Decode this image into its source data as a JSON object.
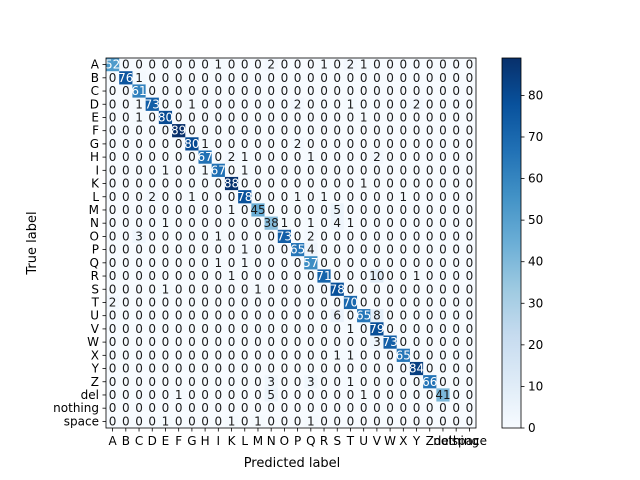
{
  "chart_data": {
    "type": "heatmap",
    "xlabel": "Predicted label",
    "ylabel": "True label",
    "labels": [
      "A",
      "B",
      "C",
      "D",
      "E",
      "F",
      "G",
      "H",
      "I",
      "K",
      "L",
      "M",
      "N",
      "O",
      "P",
      "Q",
      "R",
      "S",
      "T",
      "U",
      "V",
      "W",
      "X",
      "Y",
      "Z",
      "del",
      "nothing",
      "space"
    ],
    "matrix": [
      [
        52,
        0,
        0,
        0,
        0,
        0,
        0,
        0,
        1,
        0,
        0,
        0,
        2,
        0,
        0,
        0,
        1,
        0,
        2,
        1,
        0,
        0,
        0,
        0,
        0,
        0,
        0,
        0
      ],
      [
        0,
        76,
        1,
        0,
        0,
        0,
        0,
        0,
        0,
        0,
        0,
        0,
        0,
        0,
        0,
        0,
        0,
        0,
        0,
        0,
        0,
        0,
        0,
        0,
        0,
        0,
        0,
        0
      ],
      [
        0,
        0,
        61,
        0,
        0,
        0,
        0,
        0,
        0,
        0,
        0,
        0,
        0,
        0,
        0,
        0,
        0,
        0,
        0,
        0,
        0,
        0,
        0,
        0,
        0,
        0,
        0,
        0
      ],
      [
        0,
        0,
        1,
        73,
        0,
        0,
        1,
        0,
        0,
        0,
        0,
        0,
        0,
        0,
        2,
        0,
        0,
        0,
        1,
        0,
        0,
        0,
        0,
        2,
        0,
        0,
        0,
        0
      ],
      [
        0,
        0,
        1,
        0,
        80,
        0,
        0,
        0,
        0,
        0,
        0,
        0,
        0,
        0,
        0,
        0,
        0,
        0,
        0,
        1,
        0,
        0,
        0,
        0,
        0,
        0,
        0,
        0
      ],
      [
        0,
        0,
        0,
        0,
        0,
        89,
        0,
        0,
        0,
        0,
        0,
        0,
        0,
        0,
        0,
        0,
        0,
        0,
        0,
        0,
        0,
        0,
        0,
        0,
        0,
        0,
        0,
        0
      ],
      [
        0,
        0,
        0,
        0,
        0,
        0,
        80,
        1,
        0,
        0,
        0,
        0,
        0,
        0,
        2,
        0,
        0,
        0,
        0,
        0,
        0,
        0,
        0,
        0,
        0,
        0,
        0,
        0
      ],
      [
        0,
        0,
        0,
        0,
        0,
        0,
        0,
        67,
        0,
        2,
        1,
        0,
        0,
        0,
        0,
        1,
        0,
        0,
        0,
        0,
        2,
        0,
        0,
        0,
        0,
        0,
        0,
        0
      ],
      [
        0,
        0,
        0,
        0,
        1,
        0,
        0,
        1,
        67,
        0,
        1,
        0,
        0,
        0,
        0,
        0,
        0,
        0,
        0,
        0,
        0,
        0,
        0,
        0,
        0,
        0,
        0,
        0
      ],
      [
        0,
        0,
        0,
        0,
        0,
        0,
        0,
        0,
        0,
        88,
        0,
        0,
        0,
        0,
        0,
        0,
        0,
        0,
        0,
        1,
        0,
        0,
        0,
        0,
        0,
        0,
        0,
        0
      ],
      [
        0,
        0,
        0,
        2,
        0,
        0,
        1,
        0,
        0,
        0,
        78,
        0,
        0,
        0,
        1,
        0,
        1,
        0,
        0,
        0,
        0,
        0,
        1,
        0,
        0,
        0,
        0,
        0
      ],
      [
        0,
        0,
        0,
        0,
        0,
        0,
        0,
        0,
        0,
        1,
        0,
        45,
        0,
        0,
        0,
        0,
        0,
        5,
        0,
        0,
        0,
        0,
        0,
        0,
        0,
        0,
        0,
        0
      ],
      [
        0,
        0,
        0,
        0,
        1,
        0,
        0,
        0,
        0,
        0,
        0,
        0,
        38,
        1,
        0,
        1,
        0,
        4,
        1,
        0,
        0,
        0,
        0,
        0,
        0,
        0,
        0,
        0
      ],
      [
        0,
        0,
        3,
        0,
        0,
        0,
        0,
        0,
        1,
        0,
        0,
        0,
        0,
        73,
        0,
        2,
        0,
        0,
        0,
        0,
        0,
        0,
        0,
        0,
        0,
        0,
        0,
        0
      ],
      [
        0,
        0,
        0,
        0,
        0,
        0,
        0,
        0,
        0,
        0,
        1,
        0,
        0,
        0,
        65,
        4,
        0,
        0,
        0,
        0,
        0,
        0,
        0,
        0,
        0,
        0,
        0,
        0
      ],
      [
        0,
        0,
        0,
        0,
        0,
        0,
        0,
        0,
        1,
        0,
        1,
        0,
        0,
        0,
        0,
        57,
        0,
        0,
        0,
        0,
        0,
        0,
        0,
        0,
        0,
        0,
        0,
        0
      ],
      [
        0,
        0,
        0,
        0,
        0,
        0,
        0,
        0,
        0,
        1,
        0,
        0,
        0,
        0,
        0,
        0,
        71,
        0,
        0,
        0,
        10,
        0,
        0,
        1,
        0,
        0,
        0,
        0
      ],
      [
        0,
        0,
        0,
        0,
        1,
        0,
        0,
        0,
        0,
        0,
        0,
        1,
        0,
        0,
        0,
        0,
        0,
        78,
        0,
        0,
        0,
        0,
        0,
        0,
        0,
        0,
        0,
        0
      ],
      [
        2,
        0,
        0,
        0,
        0,
        0,
        0,
        0,
        0,
        0,
        0,
        0,
        0,
        0,
        0,
        0,
        0,
        0,
        70,
        0,
        0,
        0,
        0,
        0,
        0,
        0,
        0,
        0
      ],
      [
        0,
        0,
        0,
        0,
        0,
        0,
        0,
        0,
        0,
        0,
        0,
        0,
        0,
        0,
        0,
        0,
        0,
        6,
        0,
        65,
        8,
        0,
        0,
        0,
        0,
        0,
        0,
        0
      ],
      [
        0,
        0,
        0,
        0,
        0,
        0,
        0,
        0,
        0,
        0,
        0,
        0,
        0,
        0,
        0,
        0,
        0,
        0,
        1,
        0,
        79,
        0,
        0,
        0,
        0,
        0,
        0,
        0
      ],
      [
        0,
        0,
        0,
        0,
        0,
        0,
        0,
        0,
        0,
        0,
        0,
        0,
        0,
        0,
        0,
        0,
        0,
        0,
        0,
        0,
        3,
        73,
        0,
        0,
        0,
        0,
        0,
        0
      ],
      [
        0,
        0,
        0,
        0,
        0,
        0,
        0,
        0,
        0,
        0,
        0,
        0,
        0,
        0,
        0,
        0,
        0,
        1,
        1,
        0,
        0,
        0,
        65,
        0,
        0,
        0,
        0,
        0
      ],
      [
        0,
        0,
        0,
        0,
        0,
        0,
        0,
        0,
        0,
        0,
        0,
        0,
        0,
        0,
        0,
        0,
        0,
        0,
        0,
        0,
        0,
        0,
        0,
        84,
        0,
        0,
        0,
        0
      ],
      [
        0,
        0,
        0,
        0,
        0,
        0,
        0,
        0,
        0,
        0,
        0,
        0,
        3,
        0,
        0,
        3,
        0,
        0,
        1,
        0,
        0,
        0,
        0,
        0,
        66,
        0,
        0,
        0
      ],
      [
        0,
        0,
        0,
        0,
        0,
        1,
        0,
        0,
        0,
        0,
        0,
        0,
        5,
        0,
        0,
        0,
        0,
        0,
        0,
        1,
        0,
        0,
        0,
        0,
        0,
        41,
        0,
        0
      ],
      [
        0,
        0,
        0,
        0,
        0,
        0,
        0,
        0,
        0,
        0,
        0,
        0,
        0,
        0,
        0,
        0,
        0,
        0,
        0,
        0,
        0,
        0,
        0,
        0,
        0,
        0,
        0,
        0
      ],
      [
        0,
        0,
        0,
        0,
        1,
        0,
        0,
        0,
        0,
        1,
        0,
        1,
        0,
        0,
        0,
        1,
        0,
        0,
        0,
        0,
        0,
        0,
        0,
        0,
        0,
        0,
        0,
        0
      ]
    ],
    "colorbar": {
      "min": 0,
      "max": 89,
      "ticks": [
        0,
        10,
        20,
        30,
        40,
        50,
        60,
        70,
        80
      ]
    },
    "colormap": [
      "#f7fbff",
      "#deebf7",
      "#c6dbef",
      "#9ecae1",
      "#6baed6",
      "#4292c6",
      "#2171b5",
      "#08519c",
      "#08306b"
    ]
  }
}
